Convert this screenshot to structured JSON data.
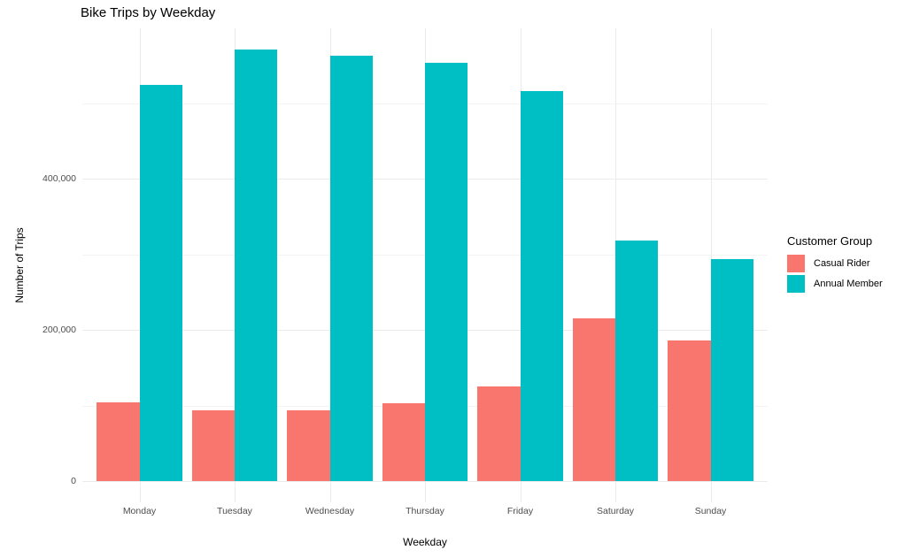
{
  "chart_data": {
    "type": "bar",
    "title": "Bike Trips by Weekday",
    "xlabel": "Weekday",
    "ylabel": "Number of Trips",
    "categories": [
      "Monday",
      "Tuesday",
      "Wednesday",
      "Thursday",
      "Friday",
      "Saturday",
      "Sunday"
    ],
    "series": [
      {
        "name": "Casual Rider",
        "color": "#F8766D",
        "values": [
          104000,
          94000,
          94000,
          103000,
          125000,
          215000,
          186000
        ]
      },
      {
        "name": "Annual Member",
        "color": "#00BFC4",
        "values": [
          524000,
          571000,
          563000,
          553000,
          516000,
          318000,
          294000
        ]
      }
    ],
    "y_axis": {
      "ticks": [
        0,
        200000,
        400000
      ],
      "tick_labels": [
        "0",
        "200,000",
        "400,000"
      ],
      "minor_ticks": [
        100000,
        300000,
        500000
      ],
      "vmin": -28000,
      "vmax": 599000,
      "grid": true
    },
    "x_axis": {
      "grid": true
    },
    "legend": {
      "title": "Customer Group",
      "position": "right"
    },
    "style": {
      "major_grid_color": "#ebebeb",
      "minor_grid_color": "#f4f4f4",
      "tick_text_color": "#4d4d4d",
      "background": "#ffffff"
    }
  }
}
